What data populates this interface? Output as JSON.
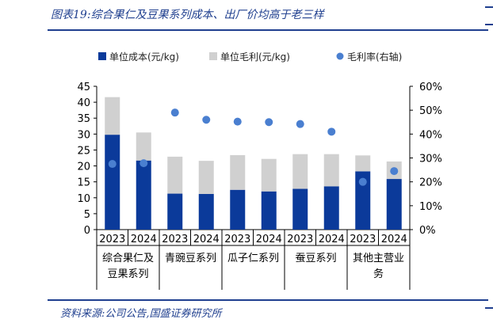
{
  "figure_title": "图表19:综合果仁及豆果系列成本、出厂价均高于老三样",
  "source_note": "资料来源:公司公告,国盛证券研究所",
  "colors": {
    "cost": "#0b3a9a",
    "margin": "#d0d0d0",
    "rate": "#4a7fd0",
    "title": "#1f3f8f"
  },
  "chart_data": {
    "type": "bar",
    "stacked": true,
    "legend_position": "top",
    "grid": false,
    "x": [
      "2023",
      "2024",
      "2023",
      "2024",
      "2023",
      "2024",
      "2023",
      "2024",
      "2023",
      "2024"
    ],
    "groups": [
      {
        "label": "综合果仁及豆果系列",
        "label_lines": [
          "综合果仁及",
          "豆果系列"
        ]
      },
      {
        "label": "青豌豆系列",
        "label_lines": [
          "青豌豆系列"
        ]
      },
      {
        "label": "瓜子仁系列",
        "label_lines": [
          "瓜子仁系列"
        ]
      },
      {
        "label": "蚕豆系列",
        "label_lines": [
          "蚕豆系列"
        ]
      },
      {
        "label": "其他主营业务",
        "label_lines": [
          "其他主营业",
          "务"
        ]
      }
    ],
    "series": [
      {
        "name": "单位成本(元/kg)",
        "type": "bar",
        "axis": "left",
        "values": [
          29.8,
          21.7,
          11.3,
          11.2,
          12.5,
          12.0,
          12.8,
          13.6,
          18.3,
          15.9
        ]
      },
      {
        "name": "单位毛利(元/kg)",
        "type": "bar",
        "axis": "left",
        "values": [
          11.8,
          8.8,
          11.6,
          10.4,
          10.9,
          10.2,
          10.9,
          10.1,
          5.0,
          5.5
        ]
      },
      {
        "name": "毛利率(右轴)",
        "type": "scatter",
        "axis": "right",
        "values": [
          27.5,
          27.8,
          49.0,
          46.0,
          45.2,
          45.0,
          44.2,
          41.0,
          20.0,
          24.5
        ]
      }
    ],
    "y_left": {
      "min": 0,
      "max": 45,
      "ticks": [
        "0",
        "5",
        "10",
        "15",
        "20",
        "25",
        "30",
        "35",
        "40",
        "45"
      ]
    },
    "y_right": {
      "min": 0,
      "max": 60,
      "ticks": [
        "0%",
        "10%",
        "20%",
        "30%",
        "40%",
        "50%",
        "60%"
      ]
    }
  }
}
